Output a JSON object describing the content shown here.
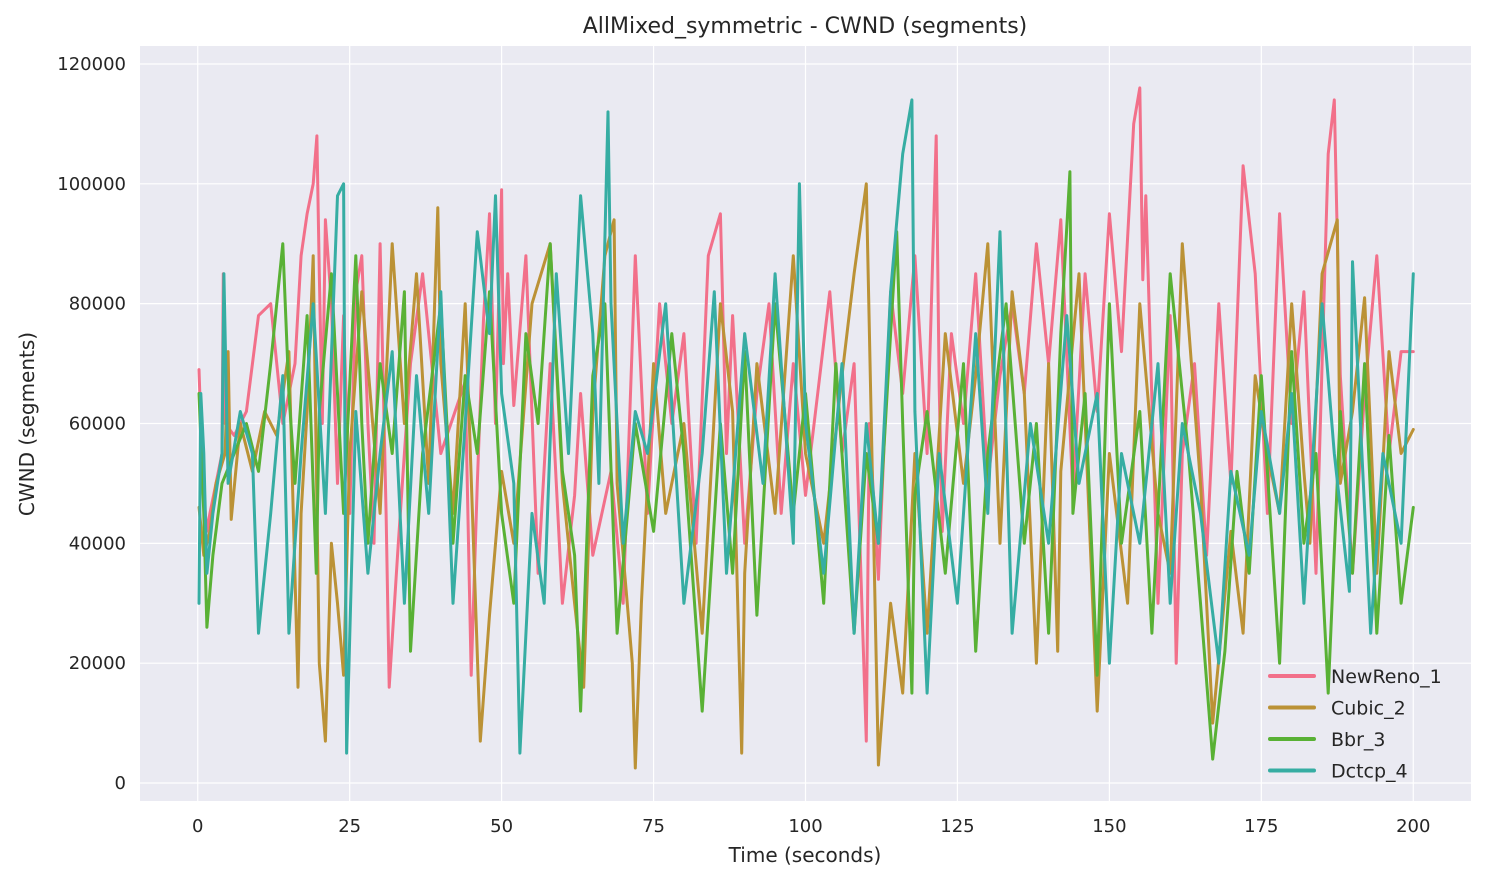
{
  "chart_data": {
    "type": "line",
    "title": "AllMixed_symmetric - CWND (segments)",
    "xlabel": "Time (seconds)",
    "ylabel": "CWND (segments)",
    "xlim": [
      -9.5,
      209.5
    ],
    "ylim": [
      -3000,
      123000
    ],
    "x_ticks": [
      0,
      25,
      50,
      75,
      100,
      125,
      150,
      175,
      200
    ],
    "y_ticks": [
      0,
      20000,
      40000,
      60000,
      80000,
      100000,
      120000
    ],
    "grid": true,
    "legend_position": "bottom-right",
    "series": [
      {
        "name": "NewReno_1",
        "color": "#f2708a",
        "x": [
          0.2,
          0.5,
          1.0,
          1.5,
          2.0,
          3.0,
          4.0,
          4.2,
          4.5,
          6.0,
          8.0,
          10.0,
          12.0,
          14.0,
          16.0,
          17.0,
          18.0,
          19.0,
          19.6,
          20.0,
          20.5,
          21.0,
          22.0,
          23.0,
          24.0,
          25.0,
          26.0,
          27.0,
          28.0,
          29.0,
          30.0,
          31.0,
          31.5,
          33.0,
          35.0,
          37.0,
          40.0,
          44.0,
          45.0,
          46.0,
          47.0,
          48.0,
          49.0,
          50.0,
          50.3,
          51.0,
          52.0,
          54.0,
          56.0,
          58.0,
          60.0,
          62.0,
          63.0,
          65.0,
          68.0,
          70.0,
          72.0,
          74.0,
          76.0,
          78.0,
          80.0,
          82.0,
          84.0,
          86.0,
          87.0,
          88.0,
          90.0,
          92.0,
          94.0,
          96.0,
          98.0,
          100.0,
          102.0,
          104.0,
          106.0,
          108.0,
          110.0,
          110.5,
          112.0,
          114.0,
          116.0,
          118.0,
          120.0,
          121.5,
          122.0,
          122.5,
          124.0,
          126.0,
          128.0,
          130.0,
          132.0,
          134.0,
          136.0,
          138.0,
          140.0,
          142.0,
          144.0,
          146.0,
          148.0,
          150.0,
          152.0,
          154.0,
          155.0,
          155.5,
          156.0,
          158.0,
          160.0,
          161.0,
          162.0,
          164.0,
          166.0,
          168.0,
          170.0,
          172.0,
          174.0,
          176.0,
          178.0,
          180.0,
          182.0,
          184.0,
          186.0,
          187.0,
          188.0,
          190.0,
          192.0,
          194.0,
          196.0,
          198.0,
          200.0
        ],
        "y": [
          69000,
          60000,
          48000,
          42000,
          45000,
          50000,
          55000,
          85000,
          60000,
          58000,
          62000,
          78000,
          80000,
          60000,
          70000,
          88000,
          95000,
          100000,
          108000,
          85000,
          60000,
          94000,
          80000,
          50000,
          78000,
          45000,
          82000,
          88000,
          60000,
          40000,
          90000,
          45000,
          16000,
          40000,
          70000,
          85000,
          55000,
          67000,
          18000,
          50000,
          77000,
          95000,
          60000,
          99000,
          70000,
          85000,
          63000,
          88000,
          35000,
          70000,
          30000,
          48000,
          65000,
          38000,
          52000,
          30000,
          88000,
          45000,
          80000,
          60000,
          75000,
          40000,
          88000,
          95000,
          55000,
          78000,
          40000,
          65000,
          80000,
          45000,
          70000,
          48000,
          65000,
          82000,
          55000,
          70000,
          7000,
          60000,
          34000,
          82000,
          65000,
          88000,
          55000,
          108000,
          66000,
          42000,
          75000,
          60000,
          85000,
          50000,
          68000,
          80000,
          65000,
          90000,
          70000,
          94000,
          48000,
          85000,
          62000,
          95000,
          72000,
          110000,
          116000,
          84000,
          98000,
          30000,
          78000,
          20000,
          55000,
          70000,
          38000,
          80000,
          50000,
          103000,
          85000,
          45000,
          95000,
          60000,
          82000,
          35000,
          105000,
          114000,
          68000,
          35000,
          65000,
          88000,
          55000,
          72000,
          72000
        ]
      },
      {
        "name": "Cubic_2",
        "color": "#bb9236",
        "x": [
          0.2,
          1.0,
          2.0,
          3.0,
          4.5,
          5.0,
          5.5,
          7.0,
          9.0,
          11.0,
          13.0,
          15.0,
          16.5,
          17.0,
          18.0,
          19.0,
          20.0,
          21.0,
          22.0,
          23.0,
          24.0,
          25.0,
          27.0,
          30.0,
          32.0,
          34.0,
          36.0,
          38.0,
          39.5,
          40.0,
          42.0,
          44.0,
          46.5,
          48.0,
          50.0,
          52.0,
          55.0,
          58.0,
          60.0,
          62.0,
          63.5,
          65.0,
          67.0,
          68.5,
          69.0,
          71.5,
          72.0,
          73.0,
          75.0,
          77.0,
          80.0,
          83.0,
          86.0,
          88.0,
          89.5,
          90.0,
          92.0,
          95.0,
          98.0,
          100.0,
          103.0,
          106.0,
          108.0,
          110.0,
          112.0,
          114.0,
          116.0,
          118.0,
          120.0,
          123.0,
          126.0,
          128.0,
          130.0,
          132.0,
          134.0,
          136.0,
          138.0,
          140.0,
          141.5,
          142.0,
          145.0,
          148.0,
          150.0,
          153.0,
          155.0,
          158.0,
          160.0,
          162.0,
          165.0,
          167.0,
          170.0,
          172.0,
          174.0,
          176.0,
          178.0,
          180.0,
          182.0,
          183.0,
          185.0,
          187.5,
          188.0,
          190.0,
          192.0,
          194.0,
          196.0,
          198.0,
          200.0
        ],
        "y": [
          46000,
          38000,
          42000,
          50000,
          55000,
          72000,
          44000,
          60000,
          52000,
          62000,
          58000,
          72000,
          16000,
          45000,
          62000,
          88000,
          20000,
          7000,
          40000,
          30000,
          18000,
          55000,
          82000,
          45000,
          90000,
          60000,
          85000,
          50000,
          96000,
          70000,
          45000,
          80000,
          7000,
          28000,
          52000,
          40000,
          80000,
          90000,
          50000,
          30000,
          16000,
          62000,
          88000,
          94000,
          50000,
          20000,
          2500,
          30000,
          70000,
          45000,
          60000,
          25000,
          80000,
          62000,
          5000,
          35000,
          70000,
          45000,
          88000,
          55000,
          40000,
          68000,
          85000,
          100000,
          3000,
          30000,
          15000,
          55000,
          25000,
          75000,
          50000,
          68000,
          90000,
          40000,
          82000,
          65000,
          20000,
          70000,
          22000,
          52000,
          85000,
          12000,
          55000,
          30000,
          80000,
          45000,
          35000,
          90000,
          50000,
          10000,
          42000,
          25000,
          68000,
          55000,
          45000,
          80000,
          52000,
          40000,
          85000,
          94000,
          50000,
          62000,
          81000,
          35000,
          72000,
          55000,
          59000
        ]
      },
      {
        "name": "Bbr_3",
        "color": "#59b135",
        "x": [
          0.2,
          1.0,
          1.5,
          2.5,
          4.0,
          6.0,
          8.0,
          10.0,
          12.0,
          14.0,
          15.0,
          16.0,
          18.0,
          19.5,
          20.0,
          22.0,
          24.0,
          26.0,
          27.0,
          28.0,
          30.0,
          32.0,
          34.0,
          35.0,
          37.0,
          40.0,
          42.0,
          44.0,
          46.0,
          48.0,
          50.0,
          52.0,
          54.0,
          56.0,
          58.0,
          60.0,
          62.0,
          63.0,
          65.0,
          67.0,
          69.0,
          72.0,
          75.0,
          78.0,
          80.0,
          83.0,
          86.0,
          88.0,
          90.0,
          92.0,
          95.0,
          98.0,
          100.0,
          103.0,
          105.0,
          108.0,
          110.0,
          112.0,
          114.0,
          115.0,
          116.0,
          117.5,
          118.0,
          120.0,
          123.0,
          126.0,
          128.0,
          130.0,
          133.0,
          136.0,
          138.0,
          140.0,
          142.0,
          143.5,
          144.0,
          146.0,
          148.0,
          150.0,
          152.0,
          155.0,
          157.0,
          160.0,
          163.0,
          165.0,
          167.0,
          169.0,
          171.0,
          173.0,
          175.0,
          178.0,
          180.0,
          182.0,
          184.0,
          186.0,
          188.0,
          190.0,
          192.0,
          194.0,
          196.0,
          198.0,
          200.0
        ],
        "y": [
          65000,
          45000,
          26000,
          38000,
          50000,
          55000,
          60000,
          52000,
          70000,
          90000,
          65000,
          50000,
          78000,
          35000,
          62000,
          85000,
          45000,
          88000,
          60000,
          40000,
          70000,
          55000,
          82000,
          22000,
          55000,
          80000,
          40000,
          68000,
          55000,
          82000,
          45000,
          30000,
          75000,
          60000,
          90000,
          52000,
          38000,
          12000,
          68000,
          80000,
          25000,
          60000,
          42000,
          75000,
          55000,
          12000,
          60000,
          35000,
          72000,
          28000,
          80000,
          45000,
          65000,
          30000,
          70000,
          25000,
          55000,
          40000,
          75000,
          92000,
          60000,
          15000,
          48000,
          62000,
          35000,
          70000,
          22000,
          55000,
          80000,
          40000,
          60000,
          25000,
          75000,
          102000,
          45000,
          65000,
          18000,
          80000,
          40000,
          62000,
          25000,
          85000,
          55000,
          30000,
          4000,
          22000,
          52000,
          35000,
          68000,
          20000,
          72000,
          40000,
          55000,
          15000,
          62000,
          35000,
          70000,
          25000,
          58000,
          30000,
          46000
        ]
      },
      {
        "name": "Dctcp_4",
        "color": "#36ada3",
        "x": [
          0.2,
          0.5,
          1.0,
          1.5,
          2.5,
          4.0,
          4.3,
          5.0,
          7.0,
          9.0,
          10.0,
          12.0,
          14.0,
          15.0,
          17.0,
          19.0,
          21.0,
          23.0,
          24.0,
          24.5,
          26.0,
          28.0,
          30.0,
          32.0,
          34.0,
          36.0,
          38.0,
          40.0,
          42.0,
          44.0,
          46.0,
          48.0,
          49.0,
          50.0,
          52.0,
          53.0,
          55.0,
          57.0,
          59.0,
          61.0,
          63.0,
          65.0,
          66.0,
          67.5,
          68.0,
          70.0,
          72.0,
          74.0,
          77.0,
          80.0,
          83.0,
          85.0,
          87.0,
          90.0,
          93.0,
          95.0,
          98.0,
          99.0,
          100.0,
          103.0,
          106.0,
          108.0,
          110.0,
          112.0,
          114.0,
          116.0,
          117.5,
          118.0,
          120.0,
          122.0,
          125.0,
          128.0,
          130.0,
          132.0,
          134.0,
          137.0,
          140.0,
          143.0,
          145.0,
          148.0,
          150.0,
          152.0,
          155.0,
          158.0,
          160.0,
          162.0,
          165.0,
          168.0,
          170.0,
          173.0,
          175.0,
          178.0,
          180.0,
          182.0,
          185.0,
          187.0,
          189.5,
          190.0,
          193.0,
          195.0,
          198.0,
          200.0
        ],
        "y": [
          30000,
          65000,
          55000,
          35000,
          45000,
          55000,
          85000,
          50000,
          62000,
          55000,
          25000,
          45000,
          68000,
          25000,
          55000,
          80000,
          45000,
          98000,
          100000,
          5000,
          62000,
          35000,
          55000,
          72000,
          30000,
          68000,
          45000,
          82000,
          30000,
          60000,
          92000,
          75000,
          98000,
          65000,
          50000,
          5000,
          45000,
          30000,
          85000,
          55000,
          98000,
          75000,
          50000,
          112000,
          80000,
          40000,
          62000,
          55000,
          80000,
          30000,
          55000,
          82000,
          35000,
          75000,
          50000,
          85000,
          40000,
          100000,
          60000,
          35000,
          70000,
          25000,
          60000,
          40000,
          82000,
          105000,
          114000,
          62000,
          15000,
          55000,
          30000,
          75000,
          45000,
          92000,
          25000,
          60000,
          40000,
          78000,
          50000,
          65000,
          20000,
          55000,
          40000,
          70000,
          30000,
          60000,
          45000,
          20000,
          52000,
          38000,
          62000,
          45000,
          65000,
          30000,
          80000,
          55000,
          32000,
          87000,
          25000,
          55000,
          40000,
          85000
        ]
      }
    ]
  }
}
